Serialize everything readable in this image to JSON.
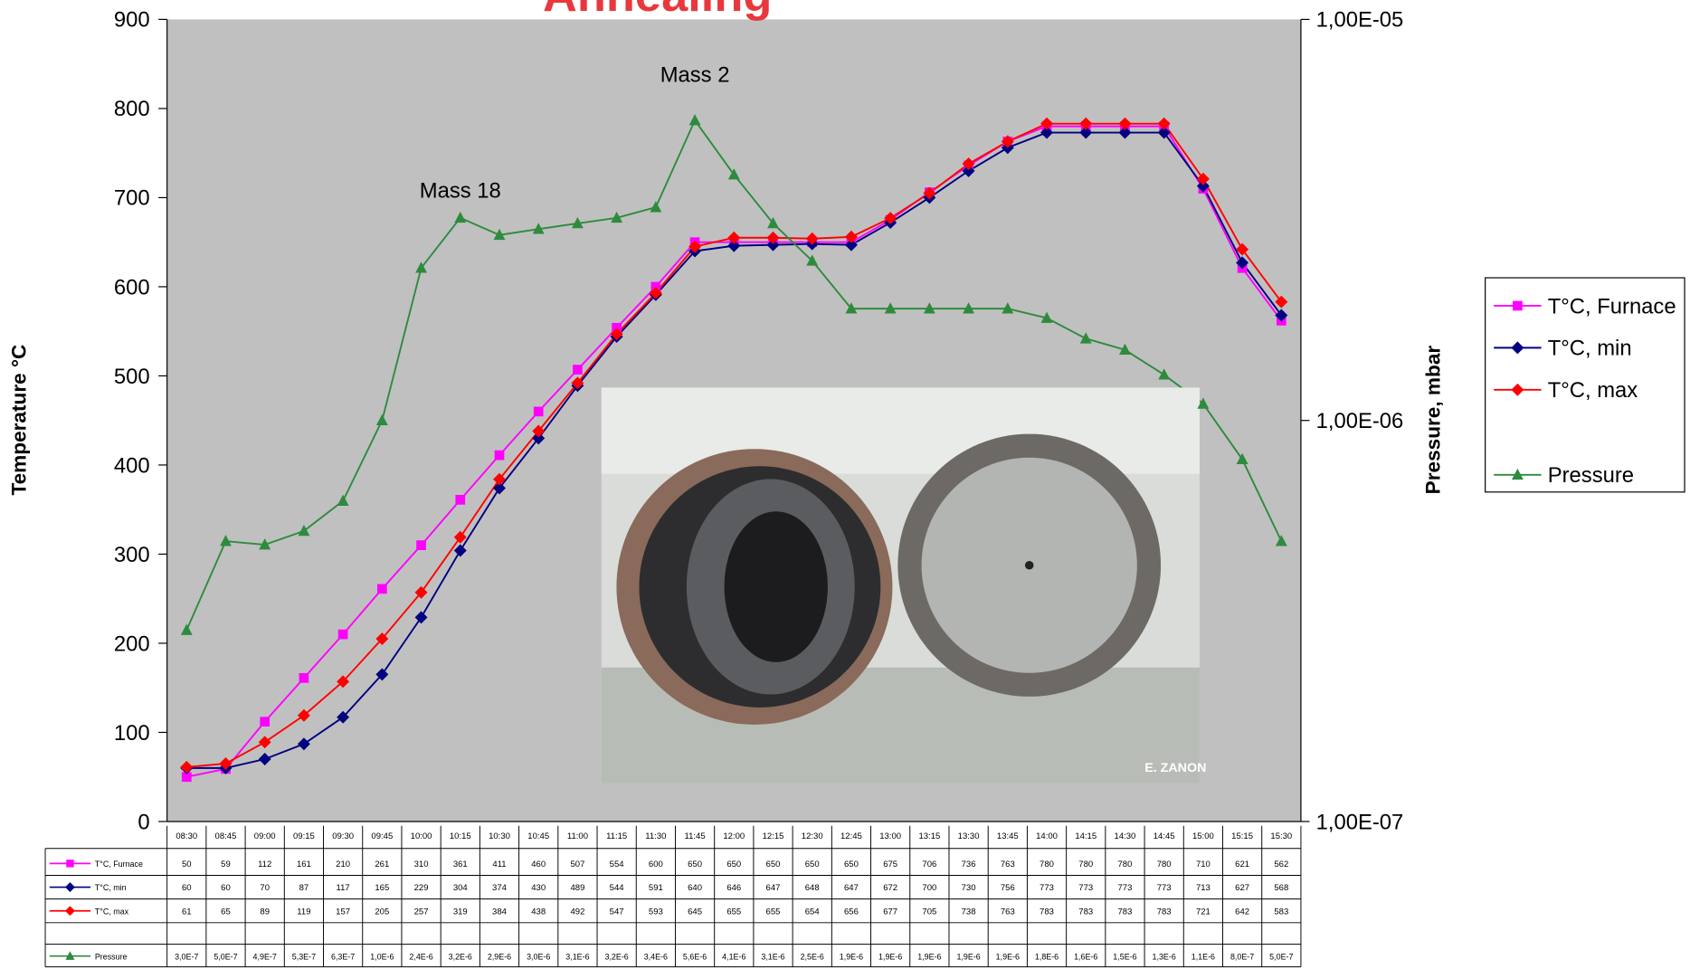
{
  "chart_data": {
    "type": "line",
    "title": "Annealing",
    "y_label": "Temperature °C",
    "y2_label": "Pressure, mbar",
    "annotations": [
      {
        "text": "Mass 18",
        "category": 7,
        "value": 700
      },
      {
        "text": "Mass 2",
        "category": 13,
        "value": 830
      }
    ],
    "photo_watermark": "E. ZANON",
    "categories": [
      "08:30",
      "08:45",
      "09:00",
      "09:15",
      "09:30",
      "09:45",
      "10:00",
      "10:15",
      "10:30",
      "10:45",
      "11:00",
      "11:15",
      "11:30",
      "11:45",
      "12:00",
      "12:15",
      "12:30",
      "12:45",
      "13:00",
      "13:15",
      "13:30",
      "13:45",
      "14:00",
      "14:15",
      "14:30",
      "14:45",
      "15:00",
      "15:15",
      "15:30"
    ],
    "ylim": [
      0,
      900
    ],
    "yticks": [
      0,
      100,
      200,
      300,
      400,
      500,
      600,
      700,
      800,
      900
    ],
    "y2lim": [
      1e-07,
      1e-05
    ],
    "y2log": true,
    "y2ticks": [
      {
        "value": 1e-07,
        "label": "1,00E-07"
      },
      {
        "value": 1e-06,
        "label": "1,00E-06"
      },
      {
        "value": 1e-05,
        "label": "1,00E-05"
      }
    ],
    "grid": false,
    "legend": "right",
    "plot_background": "#c0c0c0",
    "series": [
      {
        "name": "T°C, Furnace",
        "color": "#ff00ff",
        "marker": "square",
        "values": [
          50,
          59,
          112,
          161,
          210,
          261,
          310,
          361,
          411,
          460,
          507,
          554,
          600,
          650,
          650,
          650,
          650,
          650,
          675,
          706,
          736,
          763,
          780,
          780,
          780,
          780,
          710,
          621,
          562
        ]
      },
      {
        "name": "T°C, min",
        "color": "#000080",
        "marker": "diamond",
        "values": [
          60,
          60,
          70,
          87,
          117,
          165,
          229,
          304,
          374,
          430,
          489,
          544,
          591,
          640,
          646,
          647,
          648,
          647,
          672,
          700,
          730,
          756,
          773,
          773,
          773,
          773,
          713,
          627,
          568
        ]
      },
      {
        "name": "T°C, max",
        "color": "#ff0000",
        "marker": "diamond",
        "values": [
          61,
          65,
          89,
          119,
          157,
          205,
          257,
          319,
          384,
          438,
          492,
          547,
          593,
          645,
          655,
          655,
          654,
          656,
          677,
          705,
          738,
          763,
          783,
          783,
          783,
          783,
          721,
          642,
          583
        ]
      },
      {
        "name": "Pressure",
        "color": "#2e8b3e",
        "marker": "triangle",
        "axis": "y2",
        "values": [
          3e-07,
          5e-07,
          4.9e-07,
          5.3e-07,
          6.3e-07,
          1e-06,
          2.4e-06,
          3.2e-06,
          2.9e-06,
          3e-06,
          3.1e-06,
          3.2e-06,
          3.4e-06,
          5.6e-06,
          4.1e-06,
          3.1e-06,
          2.5e-06,
          1.9e-06,
          1.9e-06,
          1.9e-06,
          1.9e-06,
          1.9e-06,
          1.8e-06,
          1.6e-06,
          1.5e-06,
          1.3e-06,
          1.1e-06,
          8e-07,
          5e-07
        ],
        "value_labels": [
          "3,0E-7",
          "5,0E-7",
          "4,9E-7",
          "5,3E-7",
          "6,3E-7",
          "1,0E-6",
          "2,4E-6",
          "3,2E-6",
          "2,9E-6",
          "3,0E-6",
          "3,1E-6",
          "3,2E-6",
          "3,4E-6",
          "5,6E-6",
          "4,1E-6",
          "3,1E-6",
          "2,5E-6",
          "1,9E-6",
          "1,9E-6",
          "1,9E-6",
          "1,9E-6",
          "1,9E-6",
          "1,8E-6",
          "1,6E-6",
          "1,5E-6",
          "1,3E-6",
          "1,1E-6",
          "8,0E-7",
          "5,0E-7"
        ]
      }
    ]
  }
}
